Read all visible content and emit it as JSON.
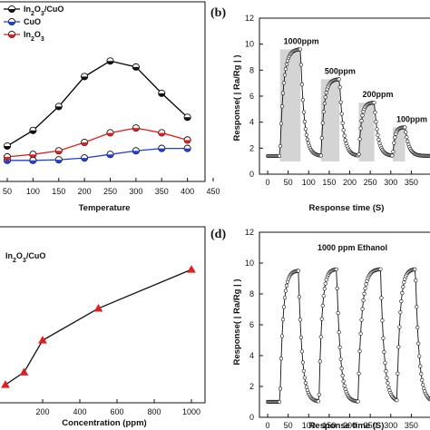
{
  "chart_data": [
    {
      "id": "a",
      "type": "line",
      "xlabel": "Temperature",
      "ylabel": "",
      "xlim": [
        0,
        450
      ],
      "xticks": [
        "50",
        "100",
        "150",
        "200",
        "250",
        "300",
        "350",
        "400",
        "450"
      ],
      "series": [
        {
          "name": "In2O3/CuO",
          "color": "#000000",
          "marker": "circle",
          "x": [
            50,
            100,
            150,
            200,
            250,
            300,
            350,
            400
          ],
          "y": [
            2.2,
            3.5,
            5.5,
            8.0,
            9.3,
            8.8,
            6.6,
            4.6
          ]
        },
        {
          "name": "CuO",
          "color": "#1f3fd6",
          "marker": "circle",
          "x": [
            50,
            100,
            150,
            200,
            250,
            300,
            350,
            400
          ],
          "y": [
            1.0,
            1.0,
            1.05,
            1.2,
            1.5,
            1.8,
            2.0,
            2.0
          ]
        },
        {
          "name": "In2O3",
          "color": "#e02020",
          "marker": "circle",
          "x": [
            50,
            100,
            150,
            200,
            250,
            300,
            350,
            400
          ],
          "y": [
            1.3,
            1.5,
            1.8,
            2.5,
            3.3,
            3.7,
            3.3,
            2.7
          ]
        }
      ],
      "legend": "top-left"
    },
    {
      "id": "b",
      "panel_label": "(b)",
      "type": "line",
      "xlabel": "Response time (S)",
      "ylabel": "Response( | Ra/Rg | )",
      "ylim": [
        0,
        12
      ],
      "yticks": [
        "0",
        "2",
        "4",
        "6",
        "8",
        "10",
        "12"
      ],
      "xlim": [
        -20,
        400
      ],
      "xticks": [
        "0",
        "50",
        "100",
        "150",
        "200",
        "250",
        "300",
        "350"
      ],
      "annotations": [
        "1000ppm",
        "500ppm",
        "200ppm",
        "100ppm"
      ],
      "pulses": [
        {
          "start": 30,
          "end": 80,
          "peak": 9.6
        },
        {
          "start": 130,
          "end": 175,
          "peak": 7.3
        },
        {
          "start": 222,
          "end": 260,
          "peak": 5.5
        },
        {
          "start": 305,
          "end": 335,
          "peak": 3.6
        }
      ],
      "baseline": 1.4
    },
    {
      "id": "c",
      "type": "line",
      "xlabel": "Concentration (ppm)",
      "ylabel": "",
      "xlim": [
        0,
        1100
      ],
      "xticks": [
        "200",
        "400",
        "600",
        "800",
        "1000"
      ],
      "series_label": "In2O3/CuO",
      "series": [
        {
          "name": "In2O3/CuO",
          "color": "#000000",
          "marker": "triangle",
          "x": [
            0,
            100,
            200,
            500,
            1000
          ],
          "y": [
            1.3,
            2.2,
            4.5,
            6.8,
            9.6
          ]
        }
      ]
    },
    {
      "id": "d",
      "panel_label": "(d)",
      "type": "line",
      "xlabel": "Response time (S)",
      "ylabel": "Response( | Ra/Rg | )",
      "ylim": [
        0,
        12
      ],
      "yticks": [
        "0",
        "2",
        "4",
        "6",
        "8",
        "10",
        "12"
      ],
      "xlim": [
        -20,
        400
      ],
      "xticks": [
        "0",
        "50",
        "100",
        "150",
        "200",
        "250",
        "300",
        "350"
      ],
      "annotation": "1000 ppm Ethanol",
      "pulses": [
        {
          "start": 30,
          "end": 75,
          "peak": 9.5
        },
        {
          "start": 125,
          "end": 168,
          "peak": 9.6
        },
        {
          "start": 220,
          "end": 275,
          "peak": 9.6
        },
        {
          "start": 315,
          "end": 360,
          "peak": 9.6
        }
      ],
      "baseline": 1.0
    }
  ]
}
